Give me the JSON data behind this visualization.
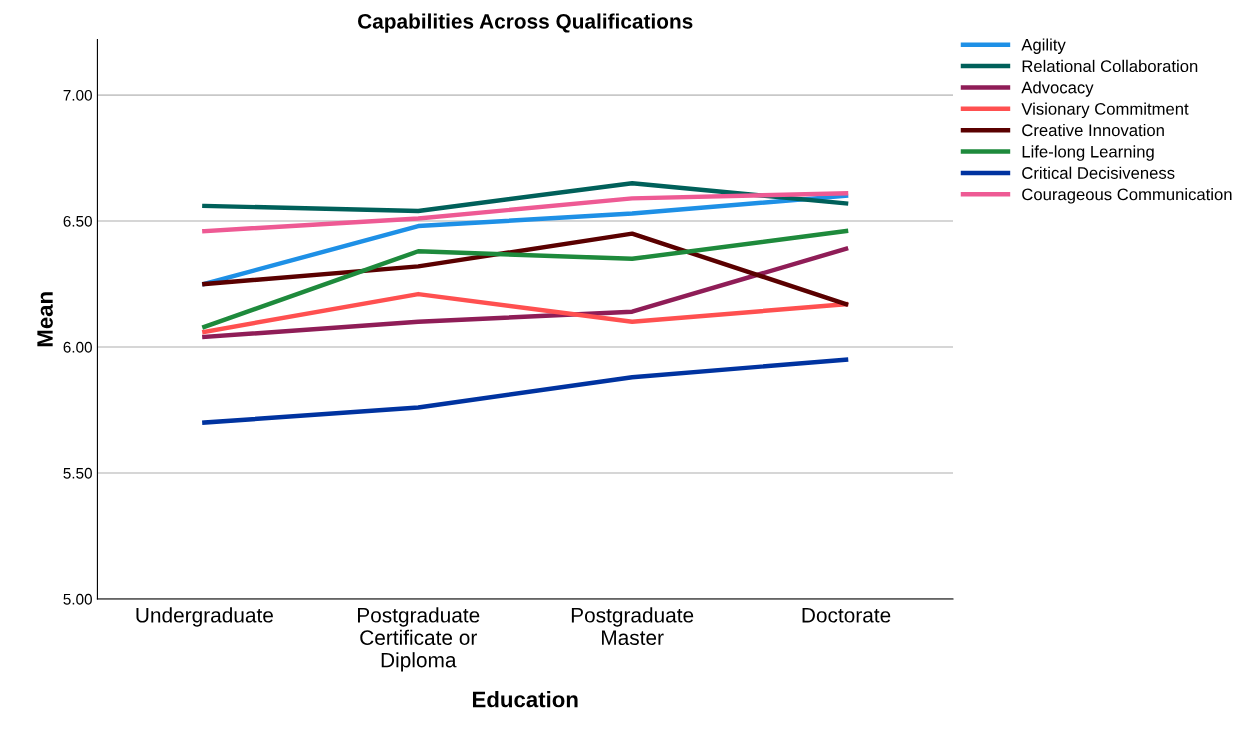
{
  "chart_data": {
    "type": "line",
    "title": "Capabilities Across Qualifications",
    "xlabel": "Education",
    "ylabel": "Mean",
    "categories": [
      "Undergraduate",
      "Postgraduate\nCertificate or\nDiploma",
      "Postgraduate\nMaster",
      "Doctorate"
    ],
    "series": [
      {
        "name": "Agility",
        "color": "#1e90e6",
        "values": [
          6.25,
          6.48,
          6.53,
          6.6
        ]
      },
      {
        "name": "Relational Collaboration",
        "color": "#00605a",
        "values": [
          6.56,
          6.54,
          6.65,
          6.57
        ]
      },
      {
        "name": "Advocacy",
        "color": "#8f1d57",
        "values": [
          6.04,
          6.1,
          6.14,
          6.39
        ]
      },
      {
        "name": "Visionary Commitment",
        "color": "#ff5050",
        "values": [
          6.06,
          6.21,
          6.1,
          6.17
        ]
      },
      {
        "name": "Creative Innovation",
        "color": "#5a0000",
        "values": [
          6.25,
          6.32,
          6.45,
          6.17
        ]
      },
      {
        "name": "Life-long Learning",
        "color": "#1e8a3c",
        "values": [
          6.08,
          6.38,
          6.35,
          6.46
        ]
      },
      {
        "name": "Critical Decisiveness",
        "color": "#0033a0",
        "values": [
          5.7,
          5.76,
          5.88,
          5.95
        ]
      },
      {
        "name": "Courageous Communication",
        "color": "#ee5a94",
        "values": [
          6.46,
          6.51,
          6.59,
          6.61
        ]
      }
    ],
    "ylim": [
      5.0,
      7.22
    ],
    "yticks": [
      {
        "value": 5.0,
        "label": "5.00"
      },
      {
        "value": 5.5,
        "label": "5.50"
      },
      {
        "value": 6.0,
        "label": "6.00"
      },
      {
        "value": 6.5,
        "label": "6.50"
      },
      {
        "value": 7.0,
        "label": "7.00"
      }
    ],
    "grid": "y",
    "legend": "top right",
    "marker": "none",
    "line_style": "solid"
  }
}
